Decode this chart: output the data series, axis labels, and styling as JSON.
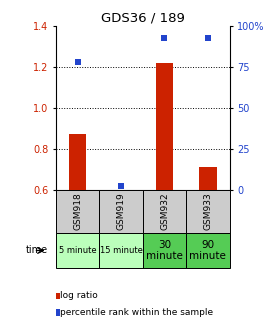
{
  "title": "GDS36 / 189",
  "samples": [
    "GSM918",
    "GSM919",
    "GSM932",
    "GSM933"
  ],
  "time_labels": [
    "5 minute",
    "15 minute",
    "30\nminute",
    "90\nminute"
  ],
  "time_colors": [
    "#bbffbb",
    "#bbffbb",
    "#55cc55",
    "#55cc55"
  ],
  "log_ratio": [
    0.87,
    0.6,
    1.22,
    0.71
  ],
  "percentile_rank": [
    78,
    2,
    93,
    93
  ],
  "ylim_left": [
    0.6,
    1.4
  ],
  "ylim_right": [
    0,
    100
  ],
  "yticks_left": [
    0.6,
    0.8,
    1.0,
    1.2,
    1.4
  ],
  "yticks_right": [
    0,
    25,
    50,
    75,
    100
  ],
  "ytick_right_labels": [
    "0",
    "25",
    "50",
    "75",
    "100%"
  ],
  "bar_color": "#cc2200",
  "dot_color": "#2244cc",
  "bar_width": 0.4,
  "background_color": "#ffffff",
  "sample_box_color": "#cccccc",
  "legend_bar_label": "log ratio",
  "legend_dot_label": "percentile rank within the sample"
}
